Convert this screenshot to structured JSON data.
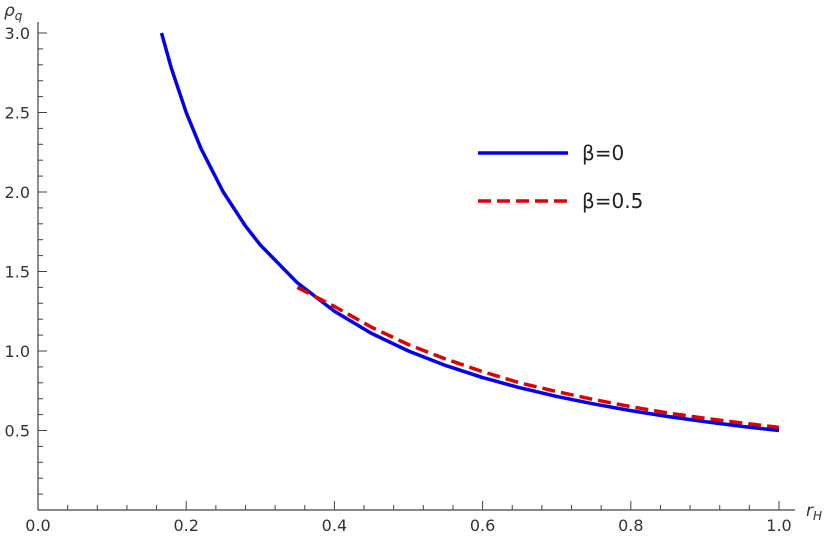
{
  "chart_data": {
    "type": "line",
    "title": "",
    "xlabel": "r",
    "xlabel_sub": "H",
    "ylabel": "ρ",
    "ylabel_sub": "q",
    "xlim": [
      0.0,
      1.0
    ],
    "ylim": [
      0.0,
      3.0
    ],
    "x_ticks_major": [
      "0.0",
      "0.2",
      "0.4",
      "0.6",
      "0.8",
      "1.0"
    ],
    "y_ticks_major": [
      "0.5",
      "1.0",
      "1.5",
      "2.0",
      "2.5",
      "3.0"
    ],
    "grid": false,
    "legend_position": "top-right",
    "series": [
      {
        "name": "β=0",
        "color": "#0000ee",
        "style": "solid",
        "x": [
          0.1667,
          0.18,
          0.2,
          0.22,
          0.25,
          0.28,
          0.3,
          0.35,
          0.4,
          0.45,
          0.5,
          0.55,
          0.6,
          0.65,
          0.7,
          0.75,
          0.8,
          0.85,
          0.9,
          0.95,
          1.0
        ],
        "y": [
          3.0,
          2.778,
          2.5,
          2.273,
          2.0,
          1.786,
          1.667,
          1.429,
          1.25,
          1.111,
          1.0,
          0.909,
          0.833,
          0.769,
          0.714,
          0.667,
          0.625,
          0.588,
          0.556,
          0.526,
          0.5
        ]
      },
      {
        "name": "β=0.5",
        "color": "#e00000",
        "style": "dashed",
        "x": [
          0.35,
          0.4,
          0.45,
          0.5,
          0.55,
          0.6,
          0.65,
          0.7,
          0.75,
          0.8,
          0.85,
          0.9,
          0.95,
          1.0
        ],
        "y": [
          1.4,
          1.28,
          1.15,
          1.04,
          0.95,
          0.87,
          0.8,
          0.745,
          0.695,
          0.65,
          0.61,
          0.577,
          0.547,
          0.52
        ]
      }
    ]
  }
}
